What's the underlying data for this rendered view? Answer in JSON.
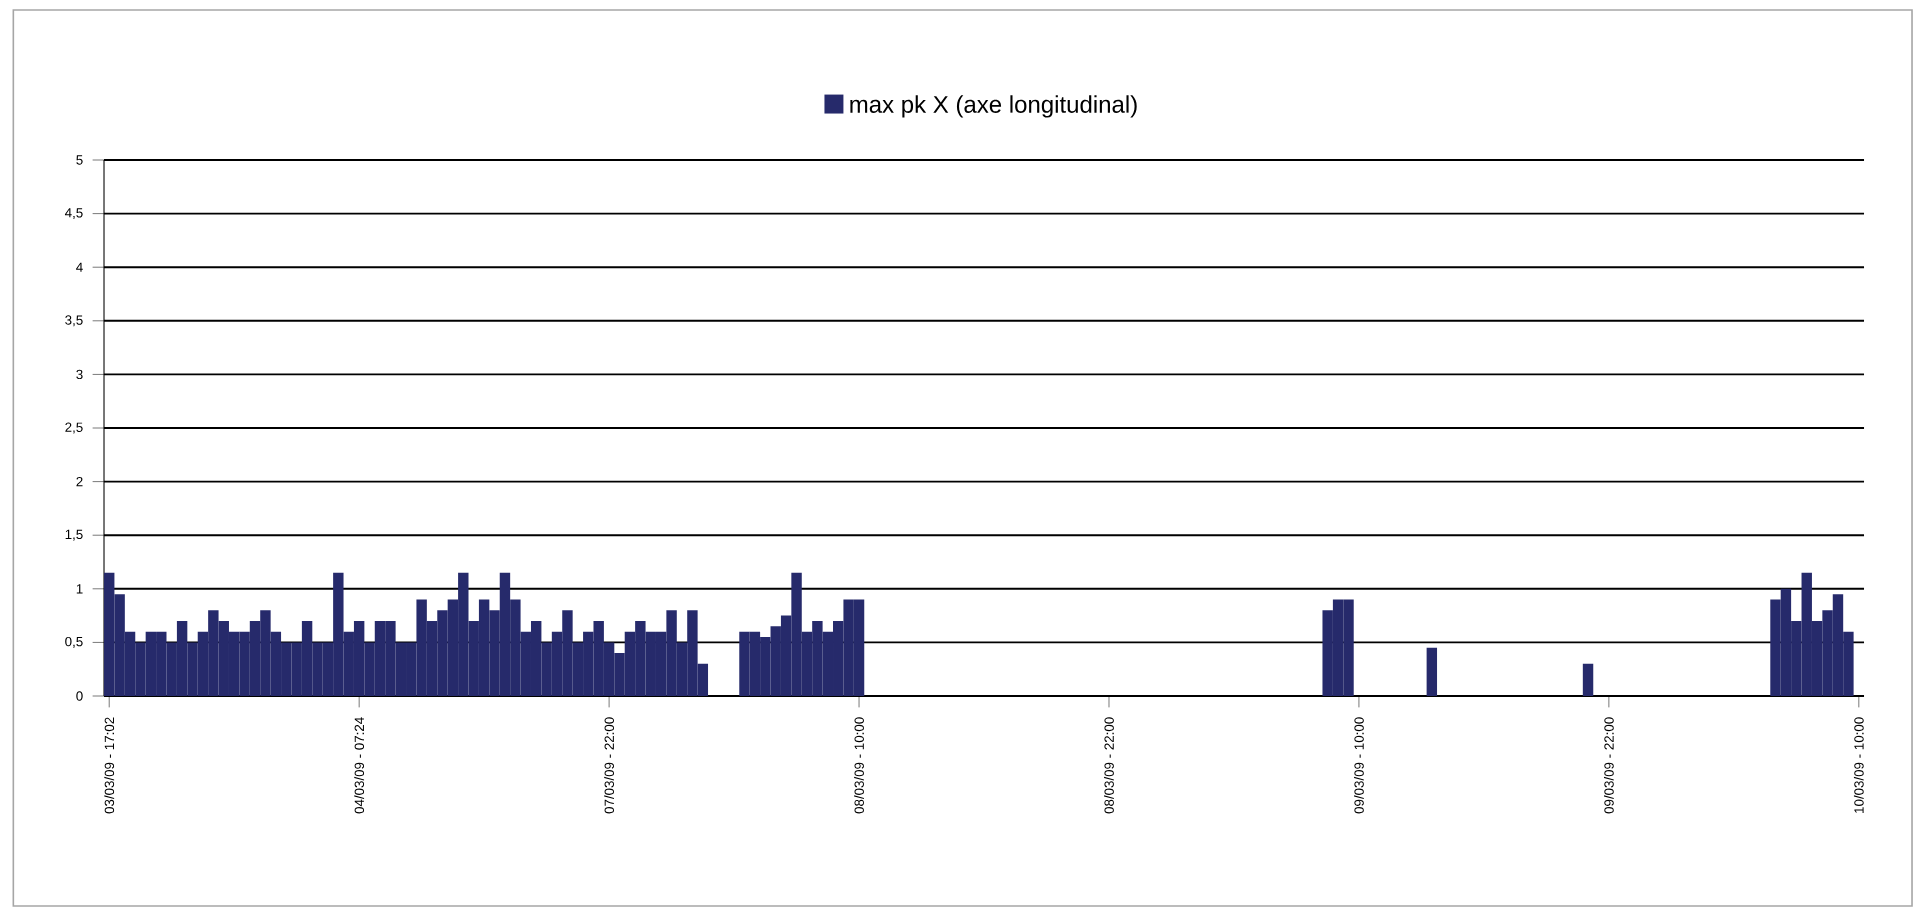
{
  "chart_data": {
    "type": "bar",
    "categories": [
      "03/03/09 - 17:02",
      null,
      null,
      null,
      null,
      null,
      null,
      null,
      null,
      null,
      null,
      null,
      null,
      null,
      null,
      null,
      null,
      null,
      null,
      null,
      null,
      null,
      null,
      null,
      "04/03/09 - 07:24",
      null,
      null,
      null,
      null,
      null,
      null,
      null,
      null,
      null,
      null,
      null,
      null,
      null,
      null,
      null,
      null,
      null,
      null,
      null,
      null,
      null,
      null,
      null,
      "07/03/09 - 22:00",
      null,
      null,
      null,
      null,
      null,
      null,
      null,
      null,
      null,
      null,
      null,
      null,
      null,
      null,
      null,
      null,
      null,
      null,
      null,
      null,
      null,
      null,
      null,
      "08/03/09 - 10:00",
      null,
      null,
      null,
      null,
      null,
      null,
      null,
      null,
      null,
      null,
      null,
      null,
      null,
      null,
      null,
      null,
      null,
      null,
      null,
      null,
      null,
      null,
      null,
      "08/03/09 - 22:00",
      null,
      null,
      null,
      null,
      null,
      null,
      null,
      null,
      null,
      null,
      null,
      null,
      null,
      null,
      null,
      null,
      null,
      null,
      null,
      null,
      null,
      null,
      null,
      "09/03/09 - 10:00",
      null,
      null,
      null,
      null,
      null,
      null,
      null,
      null,
      null,
      null,
      null,
      null,
      null,
      null,
      null,
      null,
      null,
      null,
      null,
      null,
      null,
      null,
      null,
      "09/03/09 - 22:00",
      null,
      null,
      null,
      null,
      null,
      null,
      null,
      null,
      null,
      null,
      null,
      null,
      null,
      null,
      null,
      null,
      null,
      null,
      null,
      null,
      null,
      null,
      null,
      "10/03/09 - 10:00"
    ],
    "series": [
      {
        "name": "max pk X (axe longitudinal)",
        "color": "#262a6b",
        "values": [
          1.15,
          0.95,
          0.6,
          0.5,
          0.6,
          0.6,
          0.5,
          0.7,
          0.5,
          0.6,
          0.8,
          0.7,
          0.6,
          0.6,
          0.7,
          0.8,
          0.6,
          0.5,
          0.5,
          0.7,
          0.5,
          0.5,
          1.15,
          0.6,
          0.7,
          0.5,
          0.7,
          0.7,
          0.5,
          0.5,
          0.9,
          0.7,
          0.8,
          0.9,
          1.15,
          0.7,
          0.9,
          0.8,
          1.15,
          0.9,
          0.6,
          0.7,
          0.5,
          0.6,
          0.8,
          0.5,
          0.6,
          0.7,
          0.5,
          0.4,
          0.6,
          0.7,
          0.6,
          0.6,
          0.8,
          0.5,
          0.8,
          0.3,
          null,
          null,
          null,
          0.6,
          0.6,
          0.55,
          0.65,
          0.75,
          1.15,
          0.6,
          0.7,
          0.6,
          0.7,
          0.9,
          0.9,
          null,
          null,
          null,
          null,
          null,
          null,
          null,
          null,
          null,
          null,
          null,
          null,
          null,
          null,
          null,
          null,
          null,
          null,
          null,
          null,
          null,
          null,
          null,
          null,
          null,
          null,
          null,
          null,
          null,
          null,
          null,
          null,
          null,
          null,
          null,
          null,
          null,
          null,
          null,
          null,
          null,
          null,
          null,
          null,
          0.8,
          0.9,
          0.9,
          null,
          null,
          null,
          null,
          null,
          null,
          null,
          0.45,
          null,
          null,
          null,
          null,
          null,
          null,
          null,
          null,
          null,
          null,
          null,
          null,
          null,
          null,
          0.3,
          null,
          null,
          null,
          null,
          null,
          null,
          null,
          null,
          null,
          null,
          null,
          null,
          null,
          null,
          null,
          null,
          null,
          0.9,
          1.0,
          0.7,
          1.15,
          0.7,
          0.8,
          0.95,
          0.6,
          null
        ]
      }
    ],
    "ylim": [
      0,
      5
    ],
    "yticks": [
      0,
      {
        "value": 0.5,
        "label": "0,5"
      },
      1,
      {
        "value": 1.5,
        "label": "1,5"
      },
      2,
      {
        "value": 2.5,
        "label": "2,5"
      },
      3,
      {
        "value": 3.5,
        "label": "3,5"
      },
      4,
      {
        "value": 4.5,
        "label": "4,5"
      },
      5
    ],
    "grid": "y",
    "legend": "top"
  }
}
